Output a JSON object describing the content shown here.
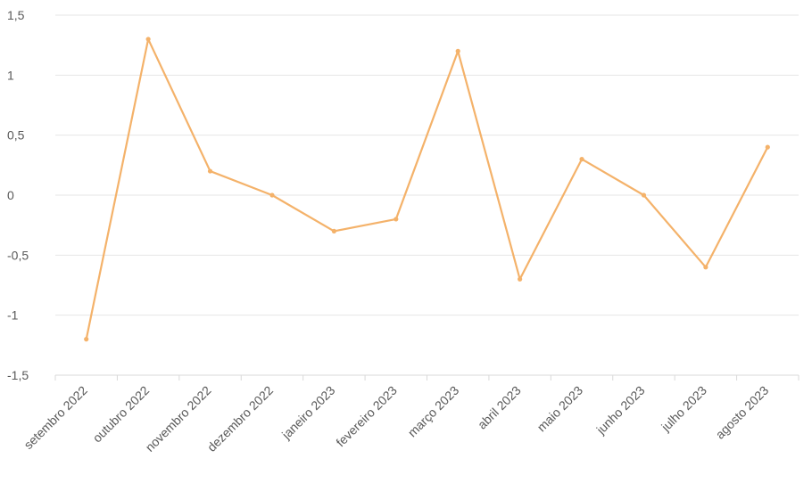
{
  "chart_data": {
    "type": "line",
    "title": "",
    "xlabel": "",
    "ylabel": "",
    "categories": [
      "setembro 2022",
      "outubro 2022",
      "novembro 2022",
      "dezembro 2022",
      "janeiro 2023",
      "fevereiro 2023",
      "março 2023",
      "abril 2023",
      "maio 2023",
      "junho 2023",
      "julho 2023",
      "agosto 2023"
    ],
    "series": [
      {
        "values": [
          -1.2,
          1.3,
          0.2,
          0.0,
          -0.3,
          -0.2,
          1.2,
          -0.7,
          0.3,
          0.0,
          -0.6,
          0.4
        ],
        "color": "#f4b26a"
      }
    ],
    "ylim": [
      -1.5,
      1.5
    ],
    "yticks": [
      1.5,
      1,
      0.5,
      0,
      -0.5,
      -1,
      -1.5
    ],
    "ytick_labels": [
      "1,5",
      "1",
      "0,5",
      "0",
      "-0,5",
      "-1",
      "-1,5"
    ],
    "grid": true,
    "legend": "none"
  }
}
